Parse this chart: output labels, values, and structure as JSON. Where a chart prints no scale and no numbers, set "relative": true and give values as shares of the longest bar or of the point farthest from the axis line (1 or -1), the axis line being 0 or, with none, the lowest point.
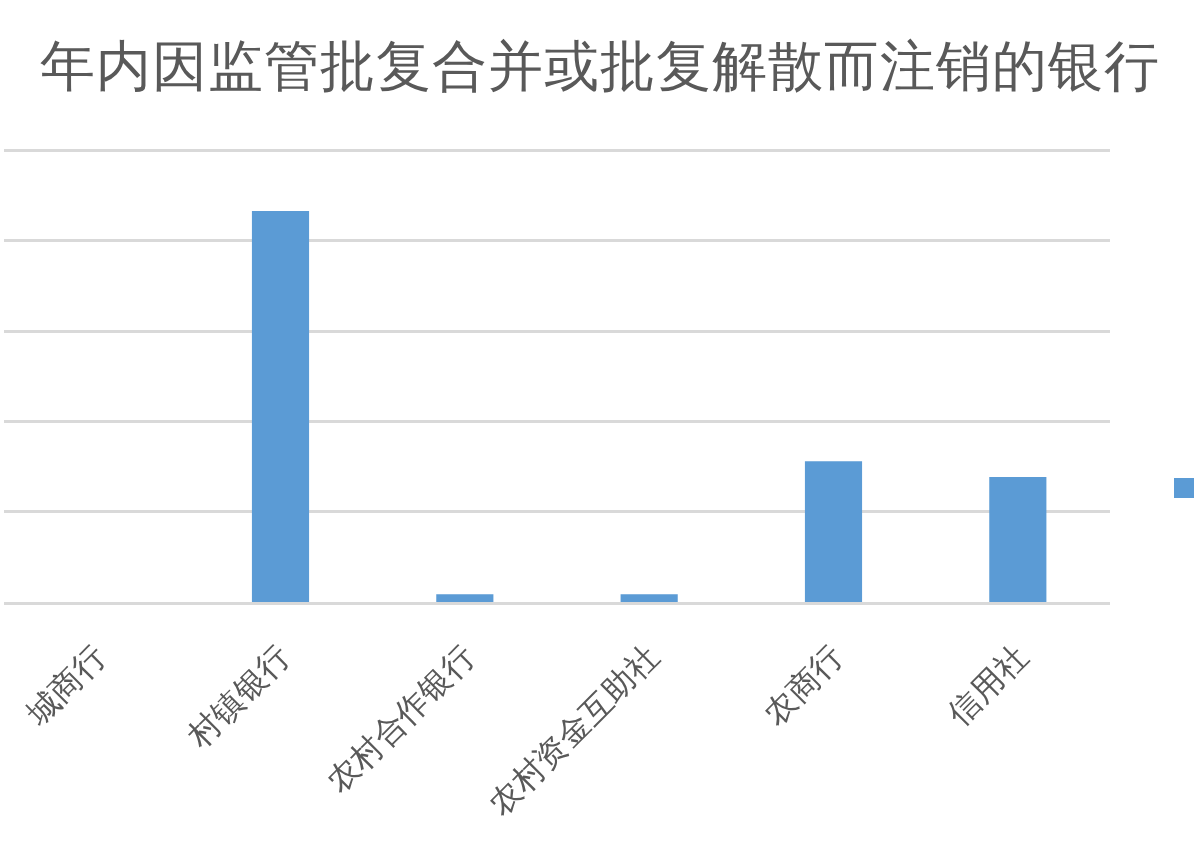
{
  "chart_data": {
    "type": "bar",
    "title": "年内因监管批复合并或批复解散而注销的银行",
    "categories": [
      "城商行",
      "村镇银行",
      "农村合作银行",
      "农村资金互助社",
      "农商行",
      "信用社"
    ],
    "values": [
      0,
      1,
      0.02,
      0.02,
      0.36,
      0.32
    ],
    "color": "#5b9bd5",
    "relative": true,
    "grid": "y"
  }
}
